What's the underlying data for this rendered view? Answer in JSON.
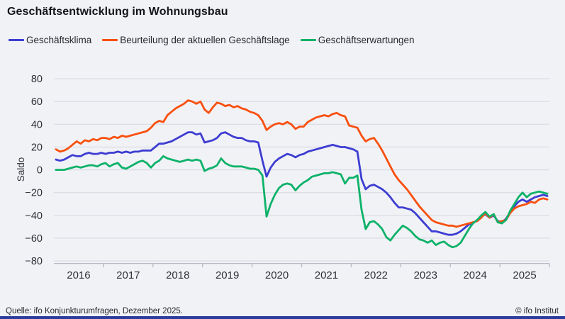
{
  "header": {
    "title": "Geschäftsentwicklung im Wohnungsbau"
  },
  "legend": [
    {
      "label": "Geschäftsklima",
      "color": "#3d3dd2"
    },
    {
      "label": "Beurteilung der aktuellen Geschäftslage",
      "color": "#f8500f"
    },
    {
      "label": "Geschäftserwartungen",
      "color": "#0db269"
    }
  ],
  "footer": {
    "source": "Quelle: ifo Konjunkturumfragen,  Dezember 2025.",
    "copyright": "© ifo Institut"
  },
  "colors": {
    "background": "#f1f2f6",
    "gridline": "#dcdee6",
    "axis": "#b6b9c4",
    "text": "#2e2f36",
    "bottom_bar": "#2c3c9e"
  },
  "chart_data": {
    "type": "line",
    "title": "Geschäftsentwicklung im Wohnungsbau",
    "xlabel": "",
    "ylabel": "Saldo",
    "ylim": [
      -80,
      80
    ],
    "yticks": [
      80,
      60,
      40,
      20,
      0,
      -20,
      -40,
      -60,
      -80
    ],
    "grid": true,
    "legend_position": "top",
    "frequency": "monthly",
    "x_start": "2016-01",
    "x_end": "2025-12",
    "year_labels": [
      "2016",
      "2017",
      "2018",
      "2019",
      "2020",
      "2021",
      "2022",
      "2023",
      "2024",
      "2025"
    ],
    "series": [
      {
        "name": "Geschäftsklima",
        "color": "#3d3dd2",
        "values": [
          9,
          8,
          9,
          11,
          13,
          12,
          12,
          14,
          15,
          14,
          14,
          15,
          14,
          15,
          15,
          16,
          15,
          16,
          15,
          16,
          16,
          17,
          17,
          17,
          20,
          23,
          23,
          24,
          25,
          27,
          29,
          31,
          33,
          33,
          31,
          32,
          24,
          25,
          26,
          28,
          32,
          33,
          31,
          29,
          28,
          28,
          26,
          25,
          25,
          24,
          8,
          -6,
          2,
          7,
          10,
          12,
          14,
          13,
          11,
          13,
          14,
          16,
          17,
          18,
          19,
          20,
          21,
          22,
          21,
          20,
          20,
          19,
          18,
          16,
          -8,
          -17,
          -14,
          -13,
          -15,
          -17,
          -20,
          -24,
          -29,
          -33,
          -33,
          -34,
          -35,
          -38,
          -42,
          -46,
          -50,
          -54,
          -54,
          -55,
          -56,
          -57,
          -57,
          -56,
          -54,
          -51,
          -48,
          -47,
          -44,
          -41,
          -39,
          -42,
          -40,
          -45,
          -46,
          -43,
          -37,
          -32,
          -28,
          -26,
          -28,
          -26,
          -24,
          -23,
          -22,
          -23
        ]
      },
      {
        "name": "Beurteilung der aktuellen Geschäftslage",
        "color": "#f8500f",
        "values": [
          18,
          16,
          17,
          19,
          22,
          25,
          23,
          26,
          25,
          27,
          26,
          28,
          28,
          27,
          29,
          28,
          30,
          29,
          30,
          31,
          32,
          33,
          34,
          37,
          41,
          43,
          42,
          48,
          51,
          54,
          56,
          58,
          61,
          60,
          58,
          60,
          53,
          50,
          55,
          59,
          58,
          56,
          57,
          55,
          56,
          54,
          53,
          51,
          50,
          48,
          43,
          35,
          38,
          40,
          41,
          40,
          42,
          40,
          36,
          38,
          38,
          42,
          44,
          46,
          47,
          48,
          47,
          49,
          50,
          48,
          47,
          39,
          38,
          37,
          30,
          25,
          27,
          28,
          23,
          17,
          10,
          3,
          -4,
          -9,
          -13,
          -17,
          -22,
          -27,
          -32,
          -36,
          -40,
          -44,
          -46,
          -47,
          -48,
          -49,
          -49,
          -50,
          -49,
          -48,
          -47,
          -46,
          -45,
          -42,
          -38,
          -42,
          -39,
          -46,
          -45,
          -44,
          -38,
          -34,
          -32,
          -31,
          -30,
          -28,
          -29,
          -26,
          -25,
          -26
        ]
      },
      {
        "name": "Geschäftserwartungen",
        "color": "#0db269",
        "values": [
          0,
          0,
          0,
          1,
          2,
          3,
          2,
          3,
          4,
          4,
          3,
          5,
          6,
          3,
          5,
          6,
          2,
          1,
          3,
          5,
          7,
          8,
          6,
          2,
          6,
          8,
          12,
          10,
          9,
          8,
          7,
          8,
          9,
          8,
          9,
          8,
          -1,
          1,
          2,
          4,
          10,
          6,
          4,
          3,
          3,
          3,
          2,
          1,
          1,
          0,
          -5,
          -41,
          -30,
          -22,
          -16,
          -13,
          -12,
          -13,
          -18,
          -14,
          -11,
          -9,
          -6,
          -5,
          -4,
          -3,
          -3,
          -2,
          -3,
          -4,
          -12,
          -7,
          -7,
          -5,
          -35,
          -52,
          -46,
          -45,
          -48,
          -52,
          -59,
          -62,
          -57,
          -53,
          -49,
          -51,
          -54,
          -58,
          -61,
          -62,
          -64,
          -62,
          -66,
          -64,
          -63,
          -66,
          -68,
          -67,
          -64,
          -58,
          -52,
          -47,
          -44,
          -40,
          -37,
          -41,
          -39,
          -46,
          -47,
          -44,
          -36,
          -30,
          -24,
          -20,
          -24,
          -21,
          -20,
          -19,
          -20,
          -21
        ]
      }
    ]
  }
}
